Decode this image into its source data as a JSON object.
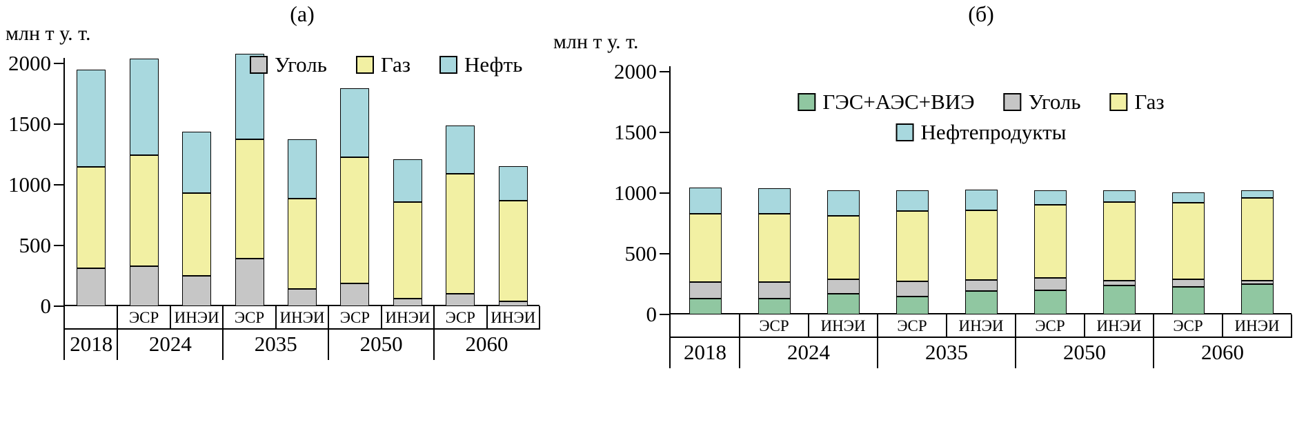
{
  "figure": {
    "background": "#ffffff",
    "line_color": "#000000"
  },
  "chart_data": [
    {
      "type": "bar",
      "subtype": "stacked",
      "title": "(а)",
      "ylabel": "млн т у. т.",
      "ylim": [
        0,
        2000
      ],
      "yticks": [
        0,
        500,
        1000,
        1500,
        2000
      ],
      "grid": false,
      "legend_position": "top-right-inside",
      "columns": [
        {
          "year": "2018",
          "scenario": ""
        },
        {
          "year": "2024",
          "scenario": "ЭСР"
        },
        {
          "year": "2024",
          "scenario": "ИНЭИ"
        },
        {
          "year": "2035",
          "scenario": "ЭСР"
        },
        {
          "year": "2035",
          "scenario": "ИНЭИ"
        },
        {
          "year": "2050",
          "scenario": "ЭСР"
        },
        {
          "year": "2050",
          "scenario": "ИНЭИ"
        },
        {
          "year": "2060",
          "scenario": "ЭСР"
        },
        {
          "year": "2060",
          "scenario": "ИНЭИ"
        }
      ],
      "series": [
        {
          "name": "Уголь",
          "color": "#c6c6c6",
          "values": [
            310,
            330,
            250,
            390,
            140,
            185,
            65,
            100,
            40
          ]
        },
        {
          "name": "Газ",
          "color": "#f2f0a3",
          "values": [
            840,
            915,
            680,
            985,
            745,
            1045,
            795,
            990,
            830
          ]
        },
        {
          "name": "Нефть",
          "color": "#a8d8de",
          "values": [
            800,
            795,
            510,
            705,
            490,
            565,
            350,
            400,
            285
          ]
        }
      ],
      "legend_rows": [
        [
          "Уголь",
          "Газ",
          "Нефть"
        ]
      ]
    },
    {
      "type": "bar",
      "subtype": "stacked",
      "title": "(б)",
      "ylabel": "млн т у. т.",
      "ylim": [
        0,
        2000
      ],
      "yticks": [
        0,
        500,
        1000,
        1500,
        2000
      ],
      "grid": false,
      "legend_position": "top-center-inside",
      "columns": [
        {
          "year": "2018",
          "scenario": ""
        },
        {
          "year": "2024",
          "scenario": "ЭСР"
        },
        {
          "year": "2024",
          "scenario": "ИНЭИ"
        },
        {
          "year": "2035",
          "scenario": "ЭСР"
        },
        {
          "year": "2035",
          "scenario": "ИНЭИ"
        },
        {
          "year": "2050",
          "scenario": "ЭСР"
        },
        {
          "year": "2050",
          "scenario": "ИНЭИ"
        },
        {
          "year": "2060",
          "scenario": "ЭСР"
        },
        {
          "year": "2060",
          "scenario": "ИНЭИ"
        }
      ],
      "series": [
        {
          "name": "ГЭС+АЭС+ВИЭ",
          "color": "#90c7a1",
          "values": [
            130,
            130,
            170,
            150,
            195,
            200,
            240,
            225,
            250
          ]
        },
        {
          "name": "Уголь",
          "color": "#c6c6c6",
          "values": [
            135,
            135,
            120,
            120,
            90,
            100,
            40,
            65,
            30
          ]
        },
        {
          "name": "Газ",
          "color": "#f2f0a3",
          "values": [
            565,
            565,
            520,
            585,
            575,
            605,
            645,
            630,
            680
          ]
        },
        {
          "name": "Нефтепродукты",
          "color": "#a8d8de",
          "values": [
            215,
            210,
            210,
            165,
            170,
            120,
            95,
            85,
            60
          ]
        }
      ],
      "legend_rows": [
        [
          "ГЭС+АЭС+ВИЭ",
          "Уголь",
          "Газ"
        ],
        [
          "Нефтепродукты"
        ]
      ]
    }
  ]
}
